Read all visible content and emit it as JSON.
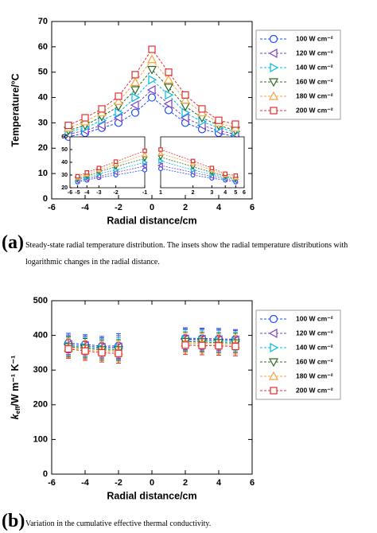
{
  "chart_data": [
    {
      "type": "line",
      "xlabel": "Radial distance/cm",
      "ylabel": "Temperature/°C",
      "x": [
        -5,
        -4,
        -3,
        -2,
        -1,
        0,
        1,
        2,
        3,
        4,
        5
      ],
      "xlim": [
        -6,
        6
      ],
      "xticks": [
        -6,
        -4,
        -2,
        0,
        2,
        4,
        6
      ],
      "ylim": [
        0,
        70
      ],
      "yticks": [
        0,
        10,
        20,
        30,
        40,
        50,
        60,
        70
      ],
      "series": [
        {
          "name": "100 W cm⁻²",
          "color": "#1a4bff",
          "marker": "circle",
          "values": [
            24.5,
            26,
            28,
            30,
            34,
            40,
            35,
            30,
            27.5,
            26,
            24.5
          ]
        },
        {
          "name": "120 W cm⁻²",
          "color": "#7a3fc0",
          "marker": "triangle-left",
          "values": [
            25.5,
            27,
            29,
            32,
            37,
            43,
            37.5,
            32,
            29,
            27,
            25.5
          ]
        },
        {
          "name": "140 W cm⁻²",
          "color": "#00b7eb",
          "marker": "triangle-right",
          "values": [
            26.5,
            28,
            31,
            34,
            40,
            47,
            41,
            34,
            30.5,
            28,
            26.5
          ]
        },
        {
          "name": "160 W cm⁻²",
          "color": "#2d6a1f",
          "marker": "triangle-down",
          "values": [
            27,
            29,
            32.5,
            36.5,
            43,
            51,
            44,
            36.5,
            32,
            29,
            27
          ]
        },
        {
          "name": "180 W cm⁻²",
          "color": "#f5a442",
          "marker": "triangle-up",
          "values": [
            28,
            30.5,
            34,
            38.5,
            46,
            55,
            47,
            39,
            34,
            30,
            28
          ]
        },
        {
          "name": "200 W cm⁻²",
          "color": "#e03030",
          "marker": "square",
          "values": [
            29,
            32,
            35.5,
            40.5,
            49,
            59,
            50,
            41,
            35.5,
            31,
            29.5
          ]
        }
      ],
      "insets": [
        {
          "xscale": "log",
          "xlim": [
            -6,
            -1
          ],
          "xticks": [
            -6,
            -5,
            -4,
            -3,
            -2,
            -1
          ],
          "ylim": [
            20,
            60
          ],
          "yticks": [
            20,
            30,
            40,
            50,
            60
          ]
        },
        {
          "xscale": "log",
          "xlim": [
            1,
            6
          ],
          "xticks": [
            1,
            2,
            3,
            4,
            5,
            6
          ],
          "ylim": [
            20,
            60
          ]
        }
      ],
      "caption_label": "(a)",
      "caption": "Steady-state radial temperature distribution. The insets show the radial temperature distributions with logarithmic changes in the radial distance."
    },
    {
      "type": "line",
      "xlabel": "Radial distance/cm",
      "ylabel": [
        "k",
        "eff",
        "/W m⁻¹ K⁻¹"
      ],
      "x": [
        -5,
        -4,
        -3,
        -2,
        0,
        2,
        3,
        4,
        5
      ],
      "xlim": [
        -6,
        6
      ],
      "xticks": [
        -6,
        -4,
        -2,
        0,
        2,
        4,
        6
      ],
      "ylim": [
        0,
        500
      ],
      "yticks": [
        0,
        100,
        200,
        300,
        400,
        500
      ],
      "series": [
        {
          "name": "100 W cm⁻²",
          "color": "#1a4bff",
          "marker": "circle",
          "values": [
            378,
            374,
            369,
            370,
            null,
            392,
            391,
            390,
            389
          ],
          "errors": [
            28,
            28,
            28,
            35,
            null,
            30,
            30,
            30,
            28
          ]
        },
        {
          "name": "120 W cm⁻²",
          "color": "#7a3fc0",
          "marker": "triangle-left",
          "values": [
            373,
            370,
            365,
            366,
            null,
            389,
            388,
            387,
            386
          ],
          "errors": [
            28,
            28,
            28,
            33,
            null,
            30,
            30,
            30,
            28
          ]
        },
        {
          "name": "140 W cm⁻²",
          "color": "#00b7eb",
          "marker": "triangle-right",
          "values": [
            370,
            366,
            362,
            362,
            null,
            386,
            385,
            383,
            382
          ],
          "errors": [
            28,
            28,
            28,
            32,
            null,
            30,
            30,
            30,
            28
          ]
        },
        {
          "name": "160 W cm⁻²",
          "color": "#2d6a1f",
          "marker": "triangle-down",
          "values": [
            367,
            363,
            358,
            358,
            null,
            382,
            381,
            379,
            378
          ],
          "errors": [
            28,
            28,
            28,
            30,
            null,
            28,
            28,
            28,
            28
          ]
        },
        {
          "name": "180 W cm⁻²",
          "color": "#f5a442",
          "marker": "triangle-up",
          "values": [
            364,
            358,
            354,
            354,
            null,
            378,
            377,
            375,
            373
          ],
          "errors": [
            27,
            27,
            27,
            30,
            null,
            28,
            28,
            28,
            27
          ]
        },
        {
          "name": "200 W cm⁻²",
          "color": "#e03030",
          "marker": "square",
          "values": [
            361,
            355,
            350,
            348,
            null,
            372,
            371,
            370,
            368
          ],
          "errors": [
            27,
            27,
            27,
            28,
            null,
            27,
            27,
            27,
            27
          ]
        }
      ],
      "caption_label": "(b)",
      "caption": "Variation in the cumulative effective thermal conductivity."
    }
  ]
}
